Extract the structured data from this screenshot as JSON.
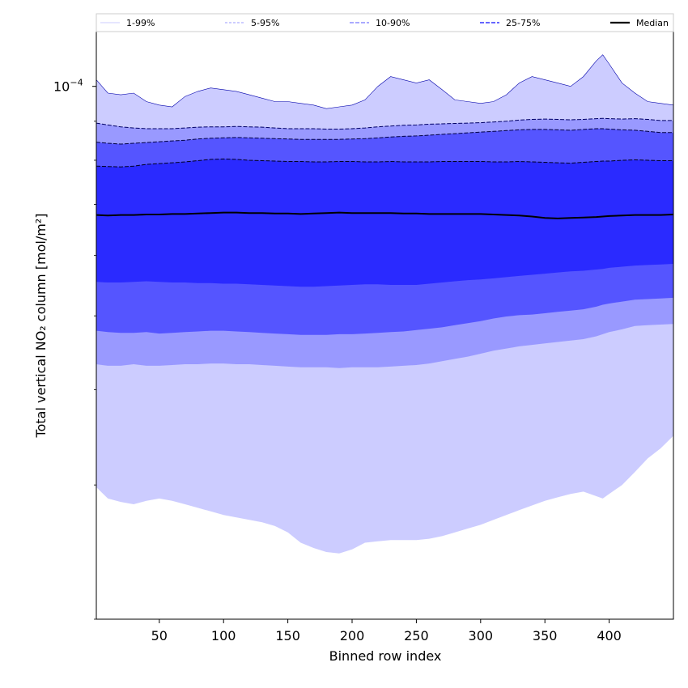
{
  "chart_data": {
    "type": "area",
    "xlabel": "Binned row index",
    "ylabel": "Total vertical NO₂ column [mol/m²]",
    "yscale": "log",
    "xlim": [
      1,
      450
    ],
    "ylim": [
      2e-05,
      0.000118
    ],
    "xticks": [
      50,
      100,
      150,
      200,
      250,
      300,
      350,
      400
    ],
    "yticks": [
      {
        "value": 0.0001,
        "label": "10",
        "exponent": "−4"
      }
    ],
    "grid": false,
    "legend_position": "top",
    "legend": [
      "1-99%",
      "5-95%",
      "10-90%",
      "25-75%",
      "Median"
    ],
    "x": [
      1,
      10,
      20,
      30,
      40,
      50,
      60,
      70,
      80,
      90,
      100,
      110,
      120,
      130,
      140,
      150,
      160,
      170,
      180,
      190,
      200,
      210,
      220,
      230,
      240,
      250,
      260,
      270,
      280,
      290,
      300,
      310,
      320,
      330,
      340,
      350,
      360,
      370,
      380,
      390,
      395,
      400,
      410,
      420,
      430,
      440,
      450
    ],
    "bands": [
      {
        "name": "1-99%",
        "color": "#ccccff",
        "lower": [
          2.98e-05,
          2.88e-05,
          2.85e-05,
          2.83e-05,
          2.86e-05,
          2.88e-05,
          2.86e-05,
          2.83e-05,
          2.8e-05,
          2.77e-05,
          2.74e-05,
          2.72e-05,
          2.7e-05,
          2.68e-05,
          2.65e-05,
          2.6e-05,
          2.52e-05,
          2.48e-05,
          2.45e-05,
          2.44e-05,
          2.47e-05,
          2.52e-05,
          2.53e-05,
          2.54e-05,
          2.54e-05,
          2.54e-05,
          2.55e-05,
          2.57e-05,
          2.6e-05,
          2.63e-05,
          2.66e-05,
          2.7e-05,
          2.74e-05,
          2.78e-05,
          2.82e-05,
          2.86e-05,
          2.89e-05,
          2.92e-05,
          2.94e-05,
          2.9e-05,
          2.88e-05,
          2.92e-05,
          3e-05,
          3.12e-05,
          3.25e-05,
          3.35e-05,
          3.48e-05
        ],
        "upper": [
          0.000102,
          9.8e-05,
          9.75e-05,
          9.8e-05,
          9.55e-05,
          9.45e-05,
          9.4e-05,
          9.7e-05,
          9.85e-05,
          9.95e-05,
          9.9e-05,
          9.85e-05,
          9.75e-05,
          9.65e-05,
          9.55e-05,
          9.55e-05,
          9.5e-05,
          9.45e-05,
          9.35e-05,
          9.4e-05,
          9.45e-05,
          9.6e-05,
          0.0001,
          0.000103,
          0.000102,
          0.000101,
          0.000102,
          9.9e-05,
          9.6e-05,
          9.55e-05,
          9.5e-05,
          9.55e-05,
          9.75e-05,
          0.000101,
          0.000103,
          0.000102,
          0.000101,
          0.0001,
          0.000103,
          0.000108,
          0.00011,
          0.000107,
          0.000101,
          9.8e-05,
          9.55e-05,
          9.5e-05,
          9.45e-05
        ]
      },
      {
        "name": "5-95%",
        "color": "#9999ff",
        "lower": [
          4.32e-05,
          4.3e-05,
          4.3e-05,
          4.32e-05,
          4.3e-05,
          4.3e-05,
          4.31e-05,
          4.32e-05,
          4.32e-05,
          4.33e-05,
          4.33e-05,
          4.32e-05,
          4.32e-05,
          4.31e-05,
          4.3e-05,
          4.29e-05,
          4.28e-05,
          4.28e-05,
          4.28e-05,
          4.27e-05,
          4.28e-05,
          4.28e-05,
          4.28e-05,
          4.29e-05,
          4.3e-05,
          4.31e-05,
          4.33e-05,
          4.36e-05,
          4.39e-05,
          4.42e-05,
          4.46e-05,
          4.5e-05,
          4.53e-05,
          4.56e-05,
          4.58e-05,
          4.6e-05,
          4.62e-05,
          4.64e-05,
          4.66e-05,
          4.7e-05,
          4.73e-05,
          4.76e-05,
          4.8e-05,
          4.85e-05,
          4.86e-05,
          4.87e-05,
          4.88e-05
        ],
        "upper": [
          8.95e-05,
          8.9e-05,
          8.85e-05,
          8.82e-05,
          8.8e-05,
          8.8e-05,
          8.8e-05,
          8.82e-05,
          8.84e-05,
          8.85e-05,
          8.85e-05,
          8.86e-05,
          8.85e-05,
          8.84e-05,
          8.82e-05,
          8.8e-05,
          8.8e-05,
          8.8e-05,
          8.79e-05,
          8.79e-05,
          8.8e-05,
          8.82e-05,
          8.85e-05,
          8.87e-05,
          8.89e-05,
          8.9e-05,
          8.92e-05,
          8.93e-05,
          8.94e-05,
          8.95e-05,
          8.96e-05,
          8.98e-05,
          9e-05,
          9.03e-05,
          9.05e-05,
          9.06e-05,
          9.05e-05,
          9.04e-05,
          9.05e-05,
          9.07e-05,
          9.08e-05,
          9.07e-05,
          9.06e-05,
          9.07e-05,
          9.05e-05,
          9.02e-05,
          9.02e-05
        ]
      },
      {
        "name": "10-90%",
        "color": "#5555ff",
        "lower": [
          4.78e-05,
          4.76e-05,
          4.75e-05,
          4.75e-05,
          4.76e-05,
          4.74e-05,
          4.75e-05,
          4.76e-05,
          4.77e-05,
          4.78e-05,
          4.78e-05,
          4.77e-05,
          4.76e-05,
          4.75e-05,
          4.74e-05,
          4.73e-05,
          4.72e-05,
          4.72e-05,
          4.72e-05,
          4.73e-05,
          4.73e-05,
          4.74e-05,
          4.75e-05,
          4.76e-05,
          4.77e-05,
          4.79e-05,
          4.81e-05,
          4.83e-05,
          4.86e-05,
          4.89e-05,
          4.92e-05,
          4.96e-05,
          4.99e-05,
          5.01e-05,
          5.02e-05,
          5.04e-05,
          5.06e-05,
          5.08e-05,
          5.1e-05,
          5.14e-05,
          5.17e-05,
          5.19e-05,
          5.22e-05,
          5.25e-05,
          5.26e-05,
          5.27e-05,
          5.28e-05
        ],
        "upper": [
          8.45e-05,
          8.42e-05,
          8.4e-05,
          8.42e-05,
          8.44e-05,
          8.46e-05,
          8.48e-05,
          8.5e-05,
          8.53e-05,
          8.55e-05,
          8.56e-05,
          8.57e-05,
          8.56e-05,
          8.55e-05,
          8.54e-05,
          8.53e-05,
          8.52e-05,
          8.52e-05,
          8.52e-05,
          8.52e-05,
          8.53e-05,
          8.54e-05,
          8.56e-05,
          8.58e-05,
          8.6e-05,
          8.61e-05,
          8.63e-05,
          8.65e-05,
          8.67e-05,
          8.69e-05,
          8.71e-05,
          8.73e-05,
          8.75e-05,
          8.77e-05,
          8.78e-05,
          8.78e-05,
          8.77e-05,
          8.76e-05,
          8.78e-05,
          8.8e-05,
          8.8e-05,
          8.79e-05,
          8.77e-05,
          8.76e-05,
          8.73e-05,
          8.7e-05,
          8.7e-05
        ]
      },
      {
        "name": "25-75%",
        "color": "#2a2aff",
        "lower": [
          5.54e-05,
          5.53e-05,
          5.53e-05,
          5.54e-05,
          5.55e-05,
          5.54e-05,
          5.53e-05,
          5.53e-05,
          5.52e-05,
          5.52e-05,
          5.51e-05,
          5.51e-05,
          5.5e-05,
          5.49e-05,
          5.48e-05,
          5.47e-05,
          5.46e-05,
          5.46e-05,
          5.47e-05,
          5.48e-05,
          5.49e-05,
          5.5e-05,
          5.5e-05,
          5.49e-05,
          5.49e-05,
          5.49e-05,
          5.51e-05,
          5.53e-05,
          5.55e-05,
          5.57e-05,
          5.58e-05,
          5.6e-05,
          5.62e-05,
          5.64e-05,
          5.66e-05,
          5.68e-05,
          5.7e-05,
          5.72e-05,
          5.73e-05,
          5.75e-05,
          5.76e-05,
          5.78e-05,
          5.8e-05,
          5.82e-05,
          5.83e-05,
          5.84e-05,
          5.85e-05
        ],
        "upper": [
          7.86e-05,
          7.85e-05,
          7.84e-05,
          7.86e-05,
          7.9e-05,
          7.92e-05,
          7.94e-05,
          7.96e-05,
          7.99e-05,
          8.02e-05,
          8.03e-05,
          8.02e-05,
          8e-05,
          7.99e-05,
          7.98e-05,
          7.97e-05,
          7.97e-05,
          7.96e-05,
          7.96e-05,
          7.97e-05,
          7.97e-05,
          7.96e-05,
          7.96e-05,
          7.97e-05,
          7.96e-05,
          7.96e-05,
          7.96e-05,
          7.97e-05,
          7.97e-05,
          7.97e-05,
          7.97e-05,
          7.96e-05,
          7.96e-05,
          7.97e-05,
          7.96e-05,
          7.95e-05,
          7.94e-05,
          7.93e-05,
          7.95e-05,
          7.97e-05,
          7.98e-05,
          7.98e-05,
          8e-05,
          8.01e-05,
          8e-05,
          7.99e-05,
          7.99e-05
        ]
      }
    ],
    "series": [
      {
        "name": "Median",
        "color": "#000000",
        "values": [
          6.78e-05,
          6.77e-05,
          6.78e-05,
          6.78e-05,
          6.79e-05,
          6.79e-05,
          6.8e-05,
          6.8e-05,
          6.81e-05,
          6.82e-05,
          6.83e-05,
          6.83e-05,
          6.82e-05,
          6.82e-05,
          6.81e-05,
          6.81e-05,
          6.8e-05,
          6.81e-05,
          6.82e-05,
          6.83e-05,
          6.82e-05,
          6.82e-05,
          6.82e-05,
          6.82e-05,
          6.81e-05,
          6.81e-05,
          6.8e-05,
          6.8e-05,
          6.8e-05,
          6.8e-05,
          6.8e-05,
          6.79e-05,
          6.78e-05,
          6.77e-05,
          6.75e-05,
          6.72e-05,
          6.71e-05,
          6.72e-05,
          6.73e-05,
          6.74e-05,
          6.75e-05,
          6.76e-05,
          6.77e-05,
          6.78e-05,
          6.78e-05,
          6.78e-05,
          6.79e-05
        ]
      }
    ]
  }
}
